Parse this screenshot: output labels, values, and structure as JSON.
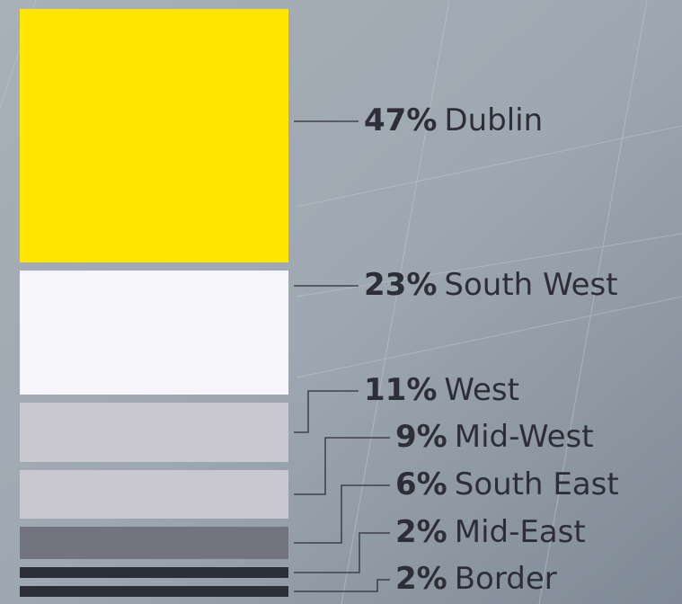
{
  "chart_data": {
    "type": "stacked-column",
    "categories": [
      "Dublin",
      "South West",
      "West",
      "Mid-West",
      "South East",
      "Mid-East",
      "Border"
    ],
    "values": [
      47,
      23,
      11,
      9,
      6,
      2,
      2
    ],
    "value_labels": [
      "47%",
      "23%",
      "11%",
      "9%",
      "6%",
      "2%",
      "2%"
    ],
    "colors": [
      "#ffe600",
      "#f6f6fa",
      "#c8c8ce",
      "#c8c8ce",
      "#747480",
      "#2e2e38",
      "#2e2e38"
    ]
  }
}
